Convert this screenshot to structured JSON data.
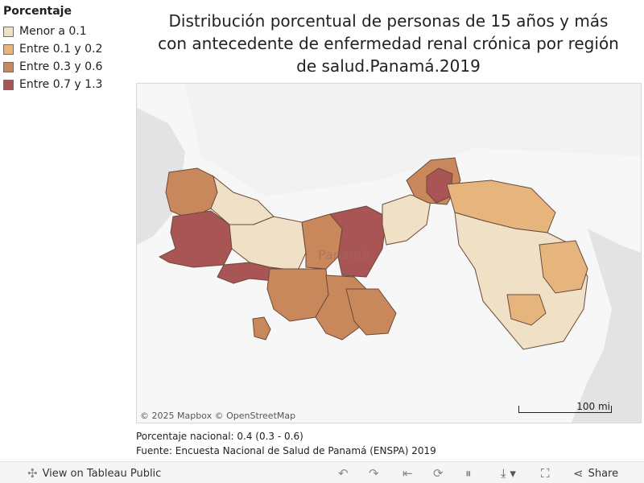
{
  "legend": {
    "title": "Porcentaje",
    "items": [
      {
        "label": "Menor a 0.1",
        "color": "#efe0c6"
      },
      {
        "label": "Entre 0.1 y 0.2",
        "color": "#e6b57d"
      },
      {
        "label": "Entre 0.3 y 0.6",
        "color": "#c9875c"
      },
      {
        "label": "Entre 0.7 y 1.3",
        "color": "#a95555"
      }
    ]
  },
  "title": "Distribución porcentual de personas de 15 años y más con antecedente de enfermedad renal crónica por región de salud.Panamá.2019",
  "map": {
    "country_label": "Panamá",
    "attribution": "© 2025 Mapbox  © OpenStreetMap",
    "scale_label": "100 mi"
  },
  "footer": {
    "national": "Porcentaje nacional: 0.4 (0.3 - 0.6)",
    "source": "Fuente: Encuesta Nacional de Salud de Panamá (ENSPA) 2019"
  },
  "toolbar": {
    "view_label": "View on Tableau Public",
    "share_label": "Share"
  }
}
